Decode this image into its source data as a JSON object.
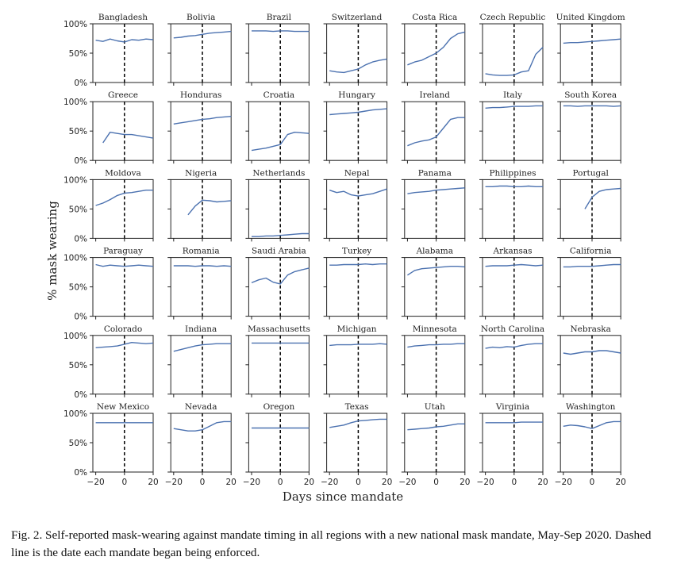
{
  "caption": "Fig. 2.  Self-reported mask-wearing against mandate timing in all regions with a new national mask mandate, May-Sep 2020. Dashed line is the date each mandate began being enforced.",
  "chart_data": {
    "type": "line",
    "layout": "small-multiples",
    "rows": 6,
    "cols": 7,
    "xlabel": "Days since mandate",
    "ylabel": "% mask wearing",
    "xlim": [
      -22,
      20
    ],
    "ylim": [
      0,
      100
    ],
    "xticks": [
      -20,
      0,
      20
    ],
    "yticks": [
      0,
      50,
      100
    ],
    "ytick_labels": [
      "0%",
      "50%",
      "100%"
    ],
    "mandate_marker": {
      "x": 0,
      "style": "dashed",
      "color": "#000000"
    },
    "line_color": "#4c72b0",
    "x": [
      -20,
      -15,
      -10,
      -5,
      0,
      5,
      10,
      15,
      20
    ],
    "panels": [
      {
        "name": "Bangladesh",
        "values": [
          72,
          70,
          74,
          71,
          69,
          73,
          72,
          74,
          73
        ]
      },
      {
        "name": "Bolivia",
        "values": [
          76,
          77,
          79,
          80,
          82,
          84,
          85,
          86,
          87
        ]
      },
      {
        "name": "Brazil",
        "values": [
          88,
          88,
          88,
          87,
          88,
          88,
          87,
          87,
          87
        ]
      },
      {
        "name": "Switzerland",
        "values": [
          20,
          18,
          17,
          20,
          23,
          30,
          35,
          38,
          40
        ]
      },
      {
        "name": "Costa Rica",
        "values": [
          30,
          35,
          38,
          44,
          50,
          60,
          75,
          83,
          86
        ]
      },
      {
        "name": "Czech Republic",
        "values": [
          15,
          13,
          12,
          12,
          13,
          18,
          20,
          48,
          60
        ]
      },
      {
        "name": "United Kingdom",
        "values": [
          67,
          68,
          68,
          69,
          70,
          71,
          72,
          73,
          74
        ]
      },
      {
        "name": "Greece",
        "values": [
          null,
          30,
          48,
          46,
          44,
          44,
          42,
          40,
          38
        ]
      },
      {
        "name": "Honduras",
        "values": [
          62,
          64,
          66,
          68,
          70,
          71,
          73,
          74,
          75
        ]
      },
      {
        "name": "Croatia",
        "values": [
          17,
          19,
          21,
          24,
          27,
          44,
          48,
          47,
          46
        ]
      },
      {
        "name": "Hungary",
        "values": [
          78,
          79,
          80,
          81,
          82,
          84,
          86,
          87,
          88
        ]
      },
      {
        "name": "Ireland",
        "values": [
          25,
          30,
          33,
          35,
          40,
          55,
          70,
          73,
          73
        ]
      },
      {
        "name": "Italy",
        "values": [
          89,
          90,
          90,
          91,
          92,
          92,
          92,
          93,
          93
        ]
      },
      {
        "name": "South Korea",
        "values": [
          93,
          93,
          92,
          93,
          93,
          93,
          93,
          92,
          93
        ]
      },
      {
        "name": "Moldova",
        "values": [
          56,
          60,
          66,
          73,
          77,
          78,
          80,
          82,
          82
        ]
      },
      {
        "name": "Nigeria",
        "values": [
          null,
          null,
          40,
          55,
          65,
          64,
          62,
          63,
          64
        ]
      },
      {
        "name": "Netherlands",
        "values": [
          3,
          3,
          4,
          4,
          5,
          6,
          7,
          8,
          8
        ]
      },
      {
        "name": "Nepal",
        "values": [
          82,
          78,
          80,
          74,
          72,
          74,
          76,
          80,
          84
        ]
      },
      {
        "name": "Panama",
        "values": [
          76,
          78,
          79,
          80,
          82,
          83,
          84,
          85,
          86
        ]
      },
      {
        "name": "Philippines",
        "values": [
          88,
          88,
          89,
          89,
          88,
          88,
          89,
          88,
          88
        ]
      },
      {
        "name": "Portugal",
        "values": [
          null,
          null,
          null,
          50,
          70,
          80,
          83,
          84,
          85
        ]
      },
      {
        "name": "Paraguay",
        "values": [
          88,
          85,
          87,
          86,
          85,
          86,
          87,
          86,
          85
        ]
      },
      {
        "name": "Romania",
        "values": [
          86,
          86,
          86,
          85,
          86,
          86,
          85,
          86,
          85
        ]
      },
      {
        "name": "Saudi Arabia",
        "values": [
          57,
          62,
          65,
          58,
          55,
          70,
          76,
          79,
          82
        ]
      },
      {
        "name": "Turkey",
        "values": [
          87,
          87,
          88,
          88,
          88,
          89,
          88,
          89,
          89
        ]
      },
      {
        "name": "Alabama",
        "values": [
          70,
          78,
          81,
          82,
          83,
          84,
          85,
          85,
          84
        ]
      },
      {
        "name": "Arkansas",
        "values": [
          85,
          86,
          86,
          86,
          87,
          88,
          87,
          86,
          87
        ]
      },
      {
        "name": "California",
        "values": [
          84,
          84,
          85,
          85,
          85,
          86,
          87,
          88,
          88
        ]
      },
      {
        "name": "Colorado",
        "values": [
          79,
          80,
          81,
          82,
          85,
          88,
          87,
          86,
          87
        ]
      },
      {
        "name": "Indiana",
        "values": [
          73,
          76,
          79,
          82,
          84,
          85,
          86,
          86,
          86
        ]
      },
      {
        "name": "Massachusetts",
        "values": [
          87,
          87,
          87,
          87,
          87,
          87,
          87,
          87,
          87
        ]
      },
      {
        "name": "Michigan",
        "values": [
          83,
          84,
          84,
          84,
          85,
          85,
          85,
          86,
          85
        ]
      },
      {
        "name": "Minnesota",
        "values": [
          80,
          82,
          83,
          84,
          84,
          85,
          85,
          86,
          86
        ]
      },
      {
        "name": "North Carolina",
        "values": [
          78,
          80,
          79,
          81,
          80,
          83,
          85,
          86,
          86
        ]
      },
      {
        "name": "Nebraska",
        "values": [
          70,
          68,
          70,
          72,
          72,
          74,
          74,
          72,
          70
        ]
      },
      {
        "name": "New Mexico",
        "values": [
          84,
          84,
          84,
          84,
          84,
          84,
          84,
          84,
          84
        ]
      },
      {
        "name": "Nevada",
        "values": [
          74,
          72,
          70,
          70,
          72,
          78,
          84,
          86,
          86
        ]
      },
      {
        "name": "Oregon",
        "values": [
          75,
          75,
          75,
          75,
          75,
          75,
          75,
          75,
          75
        ]
      },
      {
        "name": "Texas",
        "values": [
          76,
          78,
          80,
          84,
          87,
          88,
          89,
          90,
          90
        ]
      },
      {
        "name": "Utah",
        "values": [
          72,
          73,
          74,
          75,
          77,
          78,
          80,
          82,
          82
        ]
      },
      {
        "name": "Virginia",
        "values": [
          84,
          84,
          84,
          84,
          84,
          85,
          85,
          85,
          85
        ]
      },
      {
        "name": "Washington",
        "values": [
          78,
          80,
          79,
          77,
          74,
          79,
          84,
          86,
          86
        ]
      }
    ]
  }
}
